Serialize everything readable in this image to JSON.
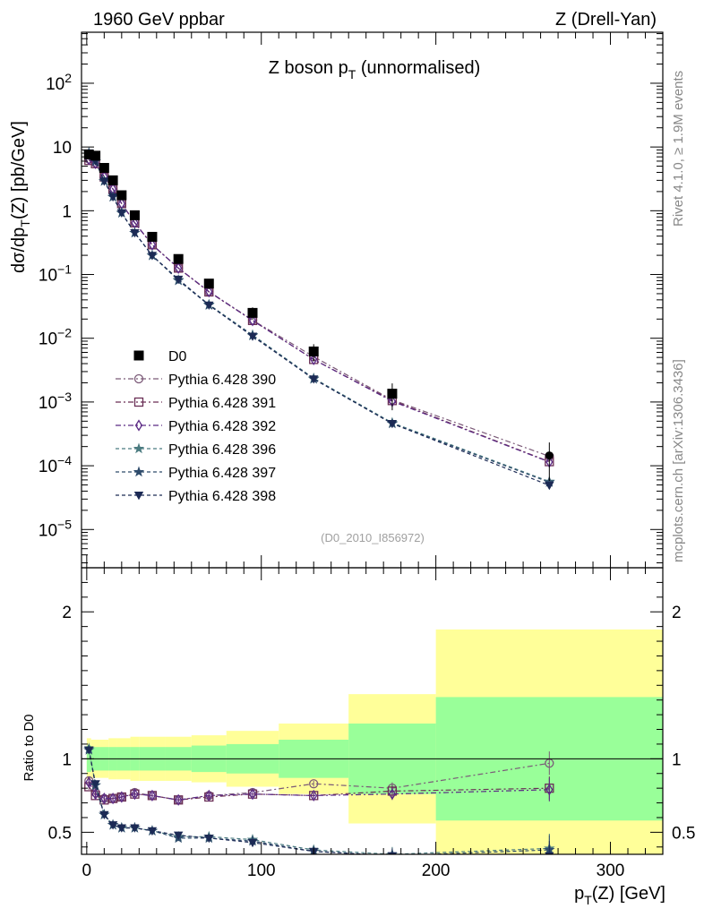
{
  "header": {
    "left": "1960 GeV ppbar",
    "right": "Z (Drell-Yan)",
    "rivet": "Rivet 4.1.0, ≥ 1.9M events",
    "mcplots": "mcplots.cern.ch [arXiv:1306.3436]"
  },
  "chart_data": {
    "type": "line",
    "title": "Z boson p_T (unnormalised)",
    "analysis_id": "(D0_2010_I856972)",
    "xlabel": "p_T(Z) [GeV]",
    "ylabel_main": "dσ/dp_T(Z) [pb/GeV]",
    "ylabel_ratio": "Ratio to D0",
    "xlim": [
      -3,
      330
    ],
    "ylim_main_log10": [
      -5.6,
      2.8
    ],
    "ylim_ratio": [
      0.35,
      2.3
    ],
    "x_ticks": [
      0,
      100,
      200,
      300
    ],
    "x_tick_labels": [
      "0",
      "100",
      "200",
      "300"
    ],
    "main_ticks": [
      {
        "exp": -5,
        "label": "10^-5"
      },
      {
        "exp": -4,
        "label": "10^-4"
      },
      {
        "exp": -3,
        "label": "10^-3"
      },
      {
        "exp": -2,
        "label": "10^-2"
      },
      {
        "exp": -1,
        "label": "10^-1"
      },
      {
        "exp": 0,
        "label": "1"
      },
      {
        "exp": 1,
        "label": "10"
      },
      {
        "exp": 2,
        "label": "10^2"
      }
    ],
    "ratio_ticks": [
      0.5,
      1,
      2
    ],
    "ratio_tick_labels": [
      "0.5",
      "1",
      "2"
    ],
    "data": {
      "name": "D0",
      "x": [
        1.25,
        5,
        10,
        15,
        20,
        27.5,
        37.5,
        52.5,
        70,
        95,
        130,
        175,
        265
      ],
      "y": [
        7.6,
        7.3,
        4.7,
        3.0,
        1.75,
        0.85,
        0.39,
        0.175,
        0.072,
        0.025,
        0.0062,
        0.00135,
        0.000145
      ],
      "yerr_rel": [
        0.07,
        0.07,
        0.07,
        0.08,
        0.08,
        0.1,
        0.12,
        0.15,
        0.18,
        0.22,
        0.3,
        0.45,
        0.6
      ]
    },
    "bands": [
      {
        "x0": 0,
        "x1": 2.5,
        "green": 0.09,
        "yellow": 0.14
      },
      {
        "x0": 2.5,
        "x1": 7.5,
        "green": 0.08,
        "yellow": 0.13
      },
      {
        "x0": 7.5,
        "x1": 12.5,
        "green": 0.08,
        "yellow": 0.13
      },
      {
        "x0": 12.5,
        "x1": 17.5,
        "green": 0.08,
        "yellow": 0.14
      },
      {
        "x0": 17.5,
        "x1": 25,
        "green": 0.08,
        "yellow": 0.14
      },
      {
        "x0": 25,
        "x1": 30,
        "green": 0.08,
        "yellow": 0.15
      },
      {
        "x0": 30,
        "x1": 45,
        "green": 0.08,
        "yellow": 0.15
      },
      {
        "x0": 45,
        "x1": 60,
        "green": 0.08,
        "yellow": 0.15
      },
      {
        "x0": 60,
        "x1": 80,
        "green": 0.09,
        "yellow": 0.16
      },
      {
        "x0": 80,
        "x1": 110,
        "green": 0.1,
        "yellow": 0.19
      },
      {
        "x0": 110,
        "x1": 150,
        "green": 0.13,
        "yellow": 0.24
      },
      {
        "x0": 150,
        "x1": 200,
        "green": 0.24,
        "yellow": 0.44
      },
      {
        "x0": 200,
        "x1": 330,
        "green": 0.42,
        "yellow": 0.88
      }
    ],
    "series": [
      {
        "name": "Pythia 6.428 390",
        "marker": "circle",
        "color": "#7b5a78",
        "dash": "6,3,2,3",
        "ratio": [
          0.85,
          0.77,
          0.73,
          0.73,
          0.74,
          0.77,
          0.75,
          0.72,
          0.75,
          0.77,
          0.83,
          0.8,
          0.97
        ],
        "ratio_err": [
          0.02,
          0.02,
          0.02,
          0.02,
          0.02,
          0.02,
          0.02,
          0.02,
          0.02,
          0.02,
          0.02,
          0.04,
          0.08
        ]
      },
      {
        "name": "Pythia 6.428 391",
        "marker": "square",
        "color": "#6a2e55",
        "dash": "6,3,2,3",
        "ratio": [
          0.81,
          0.75,
          0.72,
          0.73,
          0.74,
          0.76,
          0.75,
          0.72,
          0.74,
          0.76,
          0.75,
          0.78,
          0.8
        ],
        "ratio_err": [
          0.02,
          0.02,
          0.02,
          0.02,
          0.02,
          0.02,
          0.02,
          0.02,
          0.02,
          0.02,
          0.02,
          0.04,
          0.08
        ]
      },
      {
        "name": "Pythia 6.428 392",
        "marker": "diamond",
        "color": "#5b2a85",
        "dash": "6,3,2,3",
        "ratio": [
          0.84,
          0.76,
          0.73,
          0.73,
          0.74,
          0.76,
          0.75,
          0.72,
          0.75,
          0.76,
          0.75,
          0.76,
          0.79
        ],
        "ratio_err": [
          0.02,
          0.02,
          0.02,
          0.02,
          0.02,
          0.02,
          0.02,
          0.02,
          0.02,
          0.02,
          0.02,
          0.04,
          0.08
        ]
      },
      {
        "name": "Pythia 6.428 396",
        "marker": "star",
        "color": "#4b7b80",
        "dash": "4,3",
        "ratio": [
          1.07,
          0.82,
          0.62,
          0.55,
          0.53,
          0.53,
          0.51,
          0.47,
          0.47,
          0.45,
          0.38,
          0.35,
          0.39
        ],
        "ratio_err": [
          0.02,
          0.02,
          0.02,
          0.02,
          0.02,
          0.02,
          0.02,
          0.02,
          0.02,
          0.02,
          0.03,
          0.05,
          0.1
        ]
      },
      {
        "name": "Pythia 6.428 397",
        "marker": "star",
        "color": "#2e4b6b",
        "dash": "4,3",
        "ratio": [
          1.06,
          0.82,
          0.62,
          0.55,
          0.53,
          0.53,
          0.51,
          0.46,
          0.46,
          0.44,
          0.37,
          0.34,
          0.38
        ],
        "ratio_err": [
          0.02,
          0.02,
          0.02,
          0.02,
          0.02,
          0.02,
          0.02,
          0.02,
          0.02,
          0.02,
          0.03,
          0.05,
          0.1
        ]
      },
      {
        "name": "Pythia 6.428 398",
        "marker": "triangle-down",
        "color": "#1c2a55",
        "dash": "4,3",
        "ratio": [
          1.06,
          0.83,
          0.62,
          0.55,
          0.53,
          0.53,
          0.51,
          0.48,
          0.46,
          0.43,
          0.37,
          0.34,
          0.34
        ],
        "ratio_err": [
          0.02,
          0.02,
          0.02,
          0.02,
          0.02,
          0.02,
          0.02,
          0.02,
          0.02,
          0.02,
          0.03,
          0.05,
          0.1
        ]
      }
    ]
  }
}
